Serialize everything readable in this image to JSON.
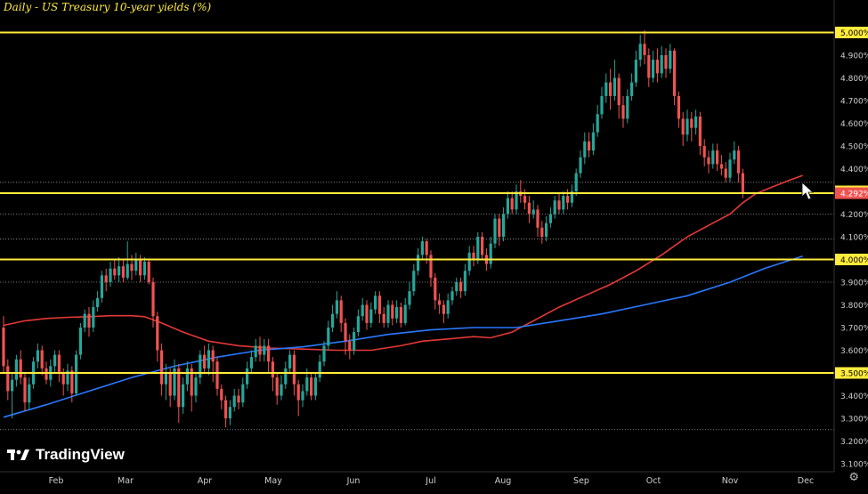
{
  "chart_data": {
    "type": "candlestick",
    "title": "Daily - US Treasury 10-year yields (%)",
    "y_unit": "%",
    "ylim": [
      3.08,
      5.1
    ],
    "y_ticks": [
      "3.100%",
      "3.200%",
      "3.300%",
      "3.400%",
      "3.500%",
      "3.600%",
      "3.700%",
      "3.800%",
      "3.900%",
      "4.000%",
      "4.100%",
      "4.200%",
      "4.300%",
      "4.400%",
      "4.500%",
      "4.600%",
      "4.700%",
      "4.800%",
      "4.900%",
      "5.000%"
    ],
    "x_ticks": [
      "Feb",
      "Mar",
      "Apr",
      "May",
      "Jun",
      "Jul",
      "Aug",
      "Sep",
      "Oct",
      "Nov",
      "Dec"
    ],
    "price_labels": [
      {
        "text": "5.000%",
        "value": 5.0,
        "kind": "level"
      },
      {
        "text": "4.300%",
        "value": 4.3,
        "kind": "level"
      },
      {
        "text": "4.292%",
        "value": 4.292,
        "kind": "last"
      },
      {
        "text": "4.000%",
        "value": 4.0,
        "kind": "level"
      },
      {
        "text": "3.500%",
        "value": 3.5,
        "kind": "level"
      }
    ],
    "horizontal_levels": [
      5.0,
      4.292,
      4.0,
      3.5
    ],
    "dotted_levels": [
      4.34,
      4.2,
      4.09,
      3.9,
      3.25
    ],
    "series": [
      {
        "key": "ma_fast",
        "color": "#e53935"
      },
      {
        "key": "ma_slow",
        "color": "#2979ff"
      }
    ],
    "candles": [
      [
        3.7,
        3.53,
        3.75,
        3.5
      ],
      [
        3.53,
        3.42,
        3.56,
        3.38
      ],
      [
        3.42,
        3.47,
        3.5,
        3.3
      ],
      [
        3.47,
        3.56,
        3.58,
        3.44
      ],
      [
        3.56,
        3.48,
        3.6,
        3.45
      ],
      [
        3.48,
        3.37,
        3.5,
        3.33
      ],
      [
        3.37,
        3.45,
        3.48,
        3.34
      ],
      [
        3.45,
        3.55,
        3.57,
        3.43
      ],
      [
        3.55,
        3.6,
        3.63,
        3.52
      ],
      [
        3.6,
        3.52,
        3.62,
        3.49
      ],
      [
        3.52,
        3.47,
        3.55,
        3.45
      ],
      [
        3.47,
        3.53,
        3.56,
        3.44
      ],
      [
        3.53,
        3.58,
        3.6,
        3.5
      ],
      [
        3.58,
        3.5,
        3.6,
        3.46
      ],
      [
        3.5,
        3.45,
        3.52,
        3.4
      ],
      [
        3.45,
        3.51,
        3.54,
        3.42
      ],
      [
        3.51,
        3.41,
        3.53,
        3.37
      ],
      [
        3.41,
        3.58,
        3.6,
        3.4
      ],
      [
        3.58,
        3.7,
        3.72,
        3.56
      ],
      [
        3.7,
        3.76,
        3.78,
        3.68
      ],
      [
        3.76,
        3.7,
        3.79,
        3.66
      ],
      [
        3.7,
        3.79,
        3.82,
        3.68
      ],
      [
        3.79,
        3.83,
        3.86,
        3.77
      ],
      [
        3.83,
        3.93,
        3.95,
        3.81
      ],
      [
        3.93,
        3.9,
        3.96,
        3.86
      ],
      [
        3.9,
        3.96,
        3.99,
        3.88
      ],
      [
        3.96,
        3.93,
        4.0,
        3.91
      ],
      [
        3.93,
        3.97,
        4.01,
        3.9
      ],
      [
        3.97,
        3.92,
        4.0,
        3.9
      ],
      [
        3.92,
        3.98,
        4.08,
        3.91
      ],
      [
        3.98,
        3.95,
        4.02,
        3.91
      ],
      [
        3.95,
        4.0,
        4.03,
        3.93
      ],
      [
        4.0,
        3.93,
        4.02,
        3.9
      ],
      [
        3.93,
        3.99,
        4.01,
        3.91
      ],
      [
        3.99,
        3.9,
        4.0,
        3.89
      ],
      [
        3.9,
        3.75,
        3.92,
        3.7
      ],
      [
        3.75,
        3.6,
        3.77,
        3.55
      ],
      [
        3.6,
        3.45,
        3.63,
        3.4
      ],
      [
        3.45,
        3.5,
        3.54,
        3.38
      ],
      [
        3.5,
        3.4,
        3.52,
        3.35
      ],
      [
        3.4,
        3.52,
        3.56,
        3.38
      ],
      [
        3.52,
        3.35,
        3.54,
        3.28
      ],
      [
        3.35,
        3.45,
        3.48,
        3.32
      ],
      [
        3.45,
        3.52,
        3.55,
        3.42
      ],
      [
        3.52,
        3.4,
        3.54,
        3.33
      ],
      [
        3.4,
        3.48,
        3.5,
        3.37
      ],
      [
        3.48,
        3.58,
        3.6,
        3.45
      ],
      [
        3.58,
        3.52,
        3.62,
        3.5
      ],
      [
        3.52,
        3.6,
        3.63,
        3.49
      ],
      [
        3.6,
        3.55,
        3.62,
        3.46
      ],
      [
        3.55,
        3.43,
        3.57,
        3.4
      ],
      [
        3.43,
        3.38,
        3.45,
        3.34
      ],
      [
        3.38,
        3.3,
        3.4,
        3.26
      ],
      [
        3.3,
        3.35,
        3.38,
        3.27
      ],
      [
        3.35,
        3.4,
        3.43,
        3.33
      ],
      [
        3.4,
        3.37,
        3.43,
        3.34
      ],
      [
        3.37,
        3.45,
        3.48,
        3.35
      ],
      [
        3.45,
        3.52,
        3.55,
        3.43
      ],
      [
        3.52,
        3.57,
        3.6,
        3.5
      ],
      [
        3.57,
        3.62,
        3.65,
        3.55
      ],
      [
        3.62,
        3.58,
        3.66,
        3.55
      ],
      [
        3.58,
        3.62,
        3.65,
        3.55
      ],
      [
        3.62,
        3.55,
        3.65,
        3.5
      ],
      [
        3.55,
        3.48,
        3.57,
        3.42
      ],
      [
        3.48,
        3.4,
        3.5,
        3.36
      ],
      [
        3.4,
        3.45,
        3.49,
        3.38
      ],
      [
        3.45,
        3.52,
        3.55,
        3.43
      ],
      [
        3.52,
        3.58,
        3.6,
        3.5
      ],
      [
        3.58,
        3.45,
        3.6,
        3.4
      ],
      [
        3.45,
        3.38,
        3.47,
        3.31
      ],
      [
        3.38,
        3.42,
        3.45,
        3.35
      ],
      [
        3.42,
        3.48,
        3.52,
        3.4
      ],
      [
        3.48,
        3.4,
        3.5,
        3.38
      ],
      [
        3.4,
        3.48,
        3.5,
        3.38
      ],
      [
        3.48,
        3.55,
        3.58,
        3.46
      ],
      [
        3.55,
        3.62,
        3.64,
        3.53
      ],
      [
        3.62,
        3.7,
        3.73,
        3.6
      ],
      [
        3.7,
        3.76,
        3.8,
        3.68
      ],
      [
        3.76,
        3.82,
        3.86,
        3.74
      ],
      [
        3.82,
        3.72,
        3.84,
        3.68
      ],
      [
        3.72,
        3.64,
        3.74,
        3.58
      ],
      [
        3.64,
        3.6,
        3.67,
        3.56
      ],
      [
        3.6,
        3.68,
        3.7,
        3.58
      ],
      [
        3.68,
        3.75,
        3.78,
        3.66
      ],
      [
        3.75,
        3.8,
        3.83,
        3.73
      ],
      [
        3.8,
        3.72,
        3.82,
        3.69
      ],
      [
        3.72,
        3.78,
        3.81,
        3.7
      ],
      [
        3.78,
        3.84,
        3.86,
        3.76
      ],
      [
        3.84,
        3.76,
        3.86,
        3.72
      ],
      [
        3.76,
        3.72,
        3.79,
        3.7
      ],
      [
        3.72,
        3.8,
        3.82,
        3.7
      ],
      [
        3.8,
        3.74,
        3.82,
        3.71
      ],
      [
        3.74,
        3.79,
        3.82,
        3.72
      ],
      [
        3.79,
        3.72,
        3.81,
        3.7
      ],
      [
        3.72,
        3.8,
        3.83,
        3.71
      ],
      [
        3.8,
        3.86,
        3.9,
        3.78
      ],
      [
        3.86,
        3.95,
        3.98,
        3.84
      ],
      [
        3.95,
        4.02,
        4.05,
        3.93
      ],
      [
        4.02,
        4.08,
        4.1,
        4.0
      ],
      [
        4.08,
        4.02,
        4.09,
        3.98
      ],
      [
        4.02,
        3.92,
        4.04,
        3.88
      ],
      [
        3.92,
        3.82,
        3.94,
        3.78
      ],
      [
        3.82,
        3.8,
        3.85,
        3.76
      ],
      [
        3.8,
        3.76,
        3.82,
        3.72
      ],
      [
        3.76,
        3.82,
        3.85,
        3.74
      ],
      [
        3.82,
        3.86,
        3.88,
        3.8
      ],
      [
        3.86,
        3.9,
        3.92,
        3.84
      ],
      [
        3.9,
        3.86,
        3.92,
        3.83
      ],
      [
        3.86,
        3.95,
        3.98,
        3.84
      ],
      [
        3.95,
        4.03,
        4.06,
        3.93
      ],
      [
        4.03,
        4.0,
        4.06,
        3.97
      ],
      [
        4.0,
        4.1,
        4.12,
        3.98
      ],
      [
        4.1,
        4.02,
        4.12,
        4.0
      ],
      [
        4.02,
        3.98,
        4.05,
        3.95
      ],
      [
        3.98,
        4.07,
        4.1,
        3.96
      ],
      [
        4.07,
        4.18,
        4.2,
        4.05
      ],
      [
        4.18,
        4.1,
        4.2,
        4.06
      ],
      [
        4.1,
        4.2,
        4.23,
        4.08
      ],
      [
        4.2,
        4.27,
        4.3,
        4.18
      ],
      [
        4.27,
        4.22,
        4.3,
        4.2
      ],
      [
        4.22,
        4.3,
        4.33,
        4.2
      ],
      [
        4.3,
        4.28,
        4.35,
        4.25
      ],
      [
        4.28,
        4.25,
        4.31,
        4.22
      ],
      [
        4.25,
        4.2,
        4.28,
        4.16
      ],
      [
        4.2,
        4.22,
        4.26,
        4.18
      ],
      [
        4.22,
        4.14,
        4.24,
        4.1
      ],
      [
        4.14,
        4.1,
        4.17,
        4.07
      ],
      [
        4.1,
        4.16,
        4.19,
        4.08
      ],
      [
        4.16,
        4.2,
        4.23,
        4.14
      ],
      [
        4.2,
        4.26,
        4.28,
        4.18
      ],
      [
        4.26,
        4.22,
        4.29,
        4.2
      ],
      [
        4.22,
        4.28,
        4.3,
        4.2
      ],
      [
        4.28,
        4.25,
        4.31,
        4.22
      ],
      [
        4.25,
        4.3,
        4.33,
        4.23
      ],
      [
        4.3,
        4.38,
        4.4,
        4.28
      ],
      [
        4.38,
        4.45,
        4.48,
        4.36
      ],
      [
        4.45,
        4.52,
        4.56,
        4.42
      ],
      [
        4.52,
        4.48,
        4.56,
        4.45
      ],
      [
        4.48,
        4.56,
        4.6,
        4.46
      ],
      [
        4.56,
        4.64,
        4.68,
        4.54
      ],
      [
        4.64,
        4.72,
        4.76,
        4.62
      ],
      [
        4.72,
        4.78,
        4.82,
        4.69
      ],
      [
        4.78,
        4.72,
        4.84,
        4.66
      ],
      [
        4.72,
        4.8,
        4.88,
        4.7
      ],
      [
        4.8,
        4.68,
        4.82,
        4.62
      ],
      [
        4.68,
        4.62,
        4.72,
        4.58
      ],
      [
        4.62,
        4.72,
        4.75,
        4.6
      ],
      [
        4.72,
        4.78,
        4.82,
        4.7
      ],
      [
        4.78,
        4.88,
        4.92,
        4.76
      ],
      [
        4.88,
        4.95,
        4.99,
        4.85
      ],
      [
        4.95,
        4.9,
        5.01,
        4.86
      ],
      [
        4.9,
        4.8,
        4.93,
        4.76
      ],
      [
        4.8,
        4.88,
        4.92,
        4.78
      ],
      [
        4.88,
        4.82,
        4.93,
        4.78
      ],
      [
        4.82,
        4.9,
        4.94,
        4.8
      ],
      [
        4.9,
        4.84,
        4.93,
        4.8
      ],
      [
        4.84,
        4.92,
        4.95,
        4.82
      ],
      [
        4.92,
        4.72,
        4.93,
        4.68
      ],
      [
        4.72,
        4.62,
        4.74,
        4.58
      ],
      [
        4.62,
        4.55,
        4.65,
        4.5
      ],
      [
        4.55,
        4.62,
        4.66,
        4.52
      ],
      [
        4.62,
        4.58,
        4.65,
        4.52
      ],
      [
        4.58,
        4.63,
        4.66,
        4.55
      ],
      [
        4.63,
        4.5,
        4.65,
        4.46
      ],
      [
        4.5,
        4.45,
        4.53,
        4.41
      ],
      [
        4.45,
        4.42,
        4.48,
        4.38
      ],
      [
        4.42,
        4.48,
        4.51,
        4.4
      ],
      [
        4.48,
        4.42,
        4.51,
        4.39
      ],
      [
        4.42,
        4.4,
        4.46,
        4.37
      ],
      [
        4.4,
        4.36,
        4.43,
        4.34
      ],
      [
        4.36,
        4.44,
        4.47,
        4.34
      ],
      [
        4.44,
        4.48,
        4.52,
        4.42
      ],
      [
        4.48,
        4.38,
        4.5,
        4.34
      ],
      [
        4.38,
        4.29,
        4.4,
        4.27
      ]
    ],
    "ma_fast": [
      [
        0,
        3.71
      ],
      [
        5,
        3.73
      ],
      [
        10,
        3.74
      ],
      [
        15,
        3.745
      ],
      [
        20,
        3.748
      ],
      [
        25,
        3.752
      ],
      [
        30,
        3.752
      ],
      [
        33,
        3.748
      ],
      [
        37,
        3.72
      ],
      [
        42,
        3.68
      ],
      [
        48,
        3.64
      ],
      [
        55,
        3.62
      ],
      [
        62,
        3.61
      ],
      [
        70,
        3.605
      ],
      [
        78,
        3.6
      ],
      [
        86,
        3.6
      ],
      [
        93,
        3.62
      ],
      [
        98,
        3.64
      ],
      [
        104,
        3.65
      ],
      [
        110,
        3.66
      ],
      [
        114,
        3.655
      ],
      [
        119,
        3.68
      ],
      [
        124,
        3.73
      ],
      [
        130,
        3.79
      ],
      [
        136,
        3.84
      ],
      [
        142,
        3.89
      ],
      [
        148,
        3.95
      ],
      [
        154,
        4.02
      ],
      [
        160,
        4.1
      ],
      [
        165,
        4.15
      ],
      [
        170,
        4.2
      ],
      [
        173,
        4.25
      ],
      [
        176,
        4.29
      ],
      [
        180,
        4.32
      ],
      [
        184,
        4.35
      ],
      [
        187,
        4.37
      ]
    ],
    "ma_slow": [
      [
        0,
        3.305
      ],
      [
        10,
        3.36
      ],
      [
        20,
        3.42
      ],
      [
        30,
        3.48
      ],
      [
        40,
        3.53
      ],
      [
        50,
        3.57
      ],
      [
        60,
        3.6
      ],
      [
        70,
        3.615
      ],
      [
        80,
        3.64
      ],
      [
        90,
        3.67
      ],
      [
        100,
        3.69
      ],
      [
        110,
        3.7
      ],
      [
        120,
        3.7
      ],
      [
        130,
        3.73
      ],
      [
        140,
        3.76
      ],
      [
        150,
        3.8
      ],
      [
        160,
        3.84
      ],
      [
        170,
        3.9
      ],
      [
        178,
        3.96
      ],
      [
        187,
        4.015
      ]
    ]
  },
  "ui": {
    "logo_text": "TradingView",
    "settings_icon": "gear-icon"
  }
}
